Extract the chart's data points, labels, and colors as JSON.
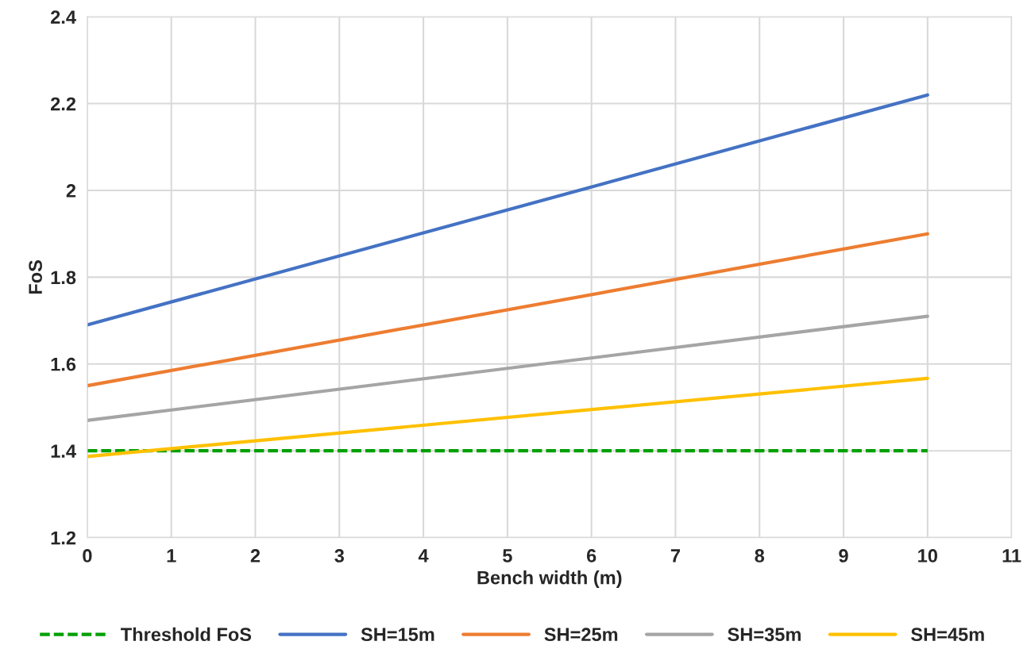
{
  "chart_data": {
    "type": "line",
    "xlabel": "Bench width (m)",
    "ylabel": "FoS",
    "x": [
      0,
      10
    ],
    "series": [
      {
        "name": "Threshold FoS",
        "color": "#00a000",
        "values": [
          1.4,
          1.4
        ],
        "line_style": "dashed"
      },
      {
        "name": "SH=15m",
        "color": "#4472c4",
        "values": [
          1.69,
          2.22
        ]
      },
      {
        "name": "SH=25m",
        "color": "#ed7d31",
        "values": [
          1.55,
          1.9
        ]
      },
      {
        "name": "SH=35m",
        "color": "#a5a5a5",
        "values": [
          1.47,
          1.71
        ]
      },
      {
        "name": "SH=45m",
        "color": "#ffc000",
        "values": [
          1.387,
          1.567
        ]
      }
    ],
    "xlim": [
      0,
      11
    ],
    "xticks": [
      0,
      1,
      2,
      3,
      4,
      5,
      6,
      7,
      8,
      9,
      10,
      11
    ],
    "ylim": [
      1.2,
      2.4
    ],
    "yticks": [
      1.2,
      1.4,
      1.6,
      1.8,
      2,
      2.2,
      2.4
    ],
    "grid": true,
    "legend": "bottom",
    "marker": "none"
  }
}
